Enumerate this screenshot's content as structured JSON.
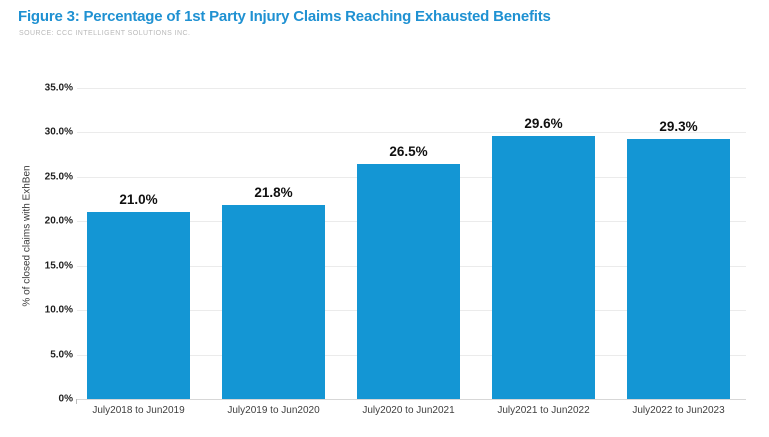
{
  "chart_data": {
    "type": "bar",
    "title": "Figure 3: Percentage of 1st Party Injury Claims Reaching Exhausted Benefits",
    "source": "SOURCE: CCC INTELLIGENT SOLUTIONS INC.",
    "ylabel": "% of closed claims with ExhBen",
    "xlabel": "",
    "categories": [
      "July2018 to Jun2019",
      "July2019 to Jun2020",
      "July2020 to Jun2021",
      "July2021 to Jun2022",
      "July2022 to Jun2023"
    ],
    "values": [
      21.0,
      21.8,
      26.5,
      29.6,
      29.3
    ],
    "value_labels": [
      "21.0%",
      "21.8%",
      "26.5%",
      "29.6%",
      "29.3%"
    ],
    "ylim": [
      0,
      35
    ],
    "yticks": [
      {
        "value": 0,
        "label": "0%"
      },
      {
        "value": 5,
        "label": "5.0%"
      },
      {
        "value": 10,
        "label": "10.0%"
      },
      {
        "value": 15,
        "label": "15.0%"
      },
      {
        "value": 20,
        "label": "20.0%"
      },
      {
        "value": 25,
        "label": "25.0%"
      },
      {
        "value": 30,
        "label": "30.0%"
      },
      {
        "value": 35,
        "label": "35.0%"
      }
    ],
    "grid": "horizontal",
    "legend": "none",
    "colors": {
      "bar": "#1496d4",
      "title": "#1f91d2",
      "source": "#b9b9b9",
      "gridline": "#ebebeb",
      "baseline": "#d7d7d7",
      "ytick_label": "#1f1f1f",
      "xtick_label": "#3e3e3e",
      "value_label": "#101010",
      "y_axis_title": "#3a3a3a",
      "background": "#ffffff"
    }
  }
}
